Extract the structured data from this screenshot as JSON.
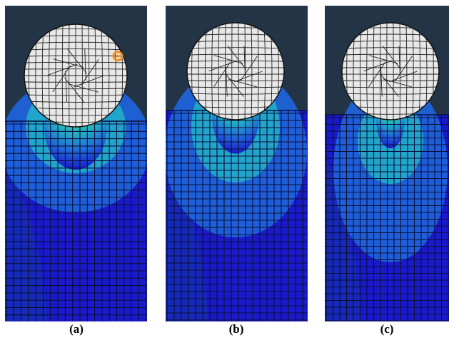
{
  "figure": {
    "panels": [
      {
        "id": "a",
        "caption": "(a)",
        "highlight_marker": true,
        "surface_level": 0.35,
        "contact_depth": 0.08
      },
      {
        "id": "b",
        "caption": "(b)",
        "highlight_marker": false,
        "surface_level": 0.32,
        "contact_depth": 0.06
      },
      {
        "id": "c",
        "caption": "(c)",
        "highlight_marker": false,
        "surface_level": 0.34,
        "contact_depth": 0.04
      }
    ],
    "colors": {
      "background": "#243447",
      "mesh_dark": "#0a0f3a",
      "sphere_fill": "#e8e8e8",
      "sphere_lines": "#222222",
      "marker": "#f28c1a",
      "legend_scale": [
        "#1a1acc",
        "#1f63d9",
        "#22a9c9",
        "#2fd09a",
        "#7ad12b",
        "#d2d21c",
        "#e87a12",
        "#b31010"
      ]
    }
  }
}
